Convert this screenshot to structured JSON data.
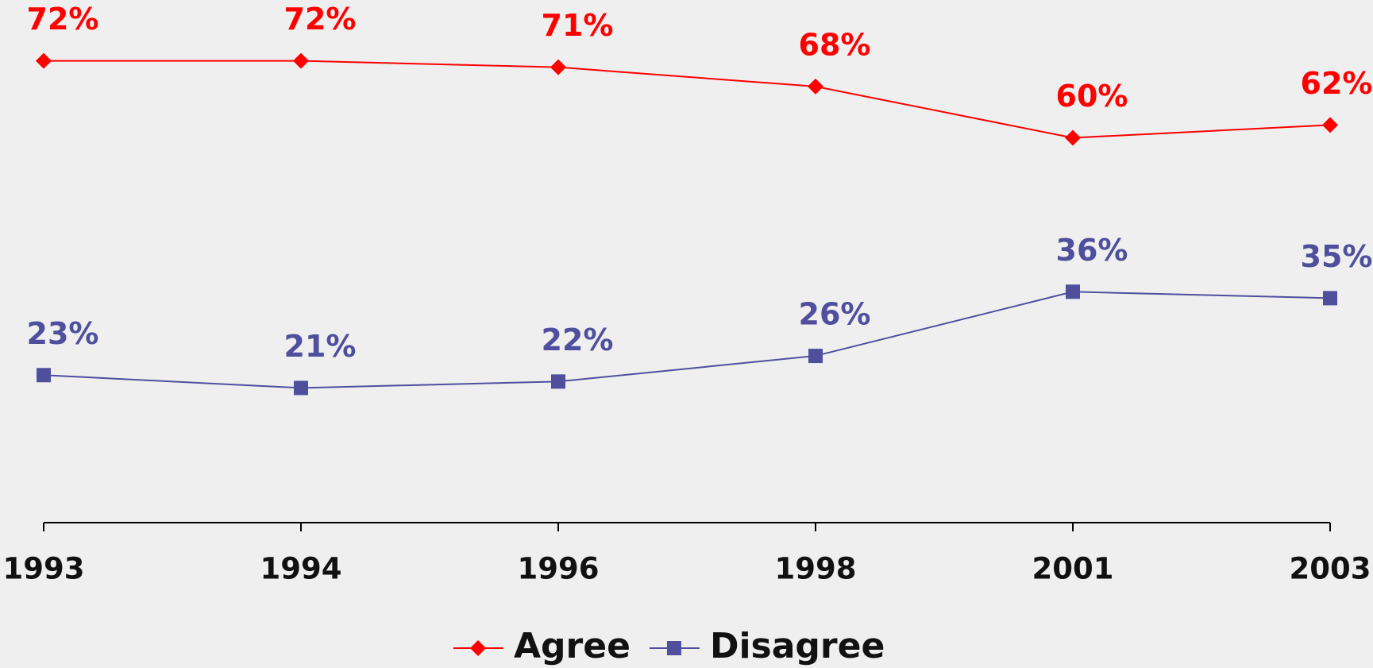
{
  "chart_data": {
    "type": "line",
    "categories": [
      "1993",
      "1994",
      "1996",
      "1998",
      "2001",
      "2003"
    ],
    "series": [
      {
        "name": "Agree",
        "color": "#ff0000",
        "marker": "diamond",
        "values": [
          72,
          72,
          71,
          68,
          60,
          62
        ],
        "value_labels": [
          "72%",
          "72%",
          "71%",
          "68%",
          "60%",
          "62%"
        ]
      },
      {
        "name": "Disagree",
        "color": "#4f4f9e",
        "marker": "square",
        "values": [
          23,
          21,
          22,
          26,
          36,
          35
        ],
        "value_labels": [
          "23%",
          "21%",
          "22%",
          "26%",
          "36%",
          "35%"
        ]
      }
    ],
    "ylim": [
      0,
      80
    ],
    "legend": "bottom"
  }
}
